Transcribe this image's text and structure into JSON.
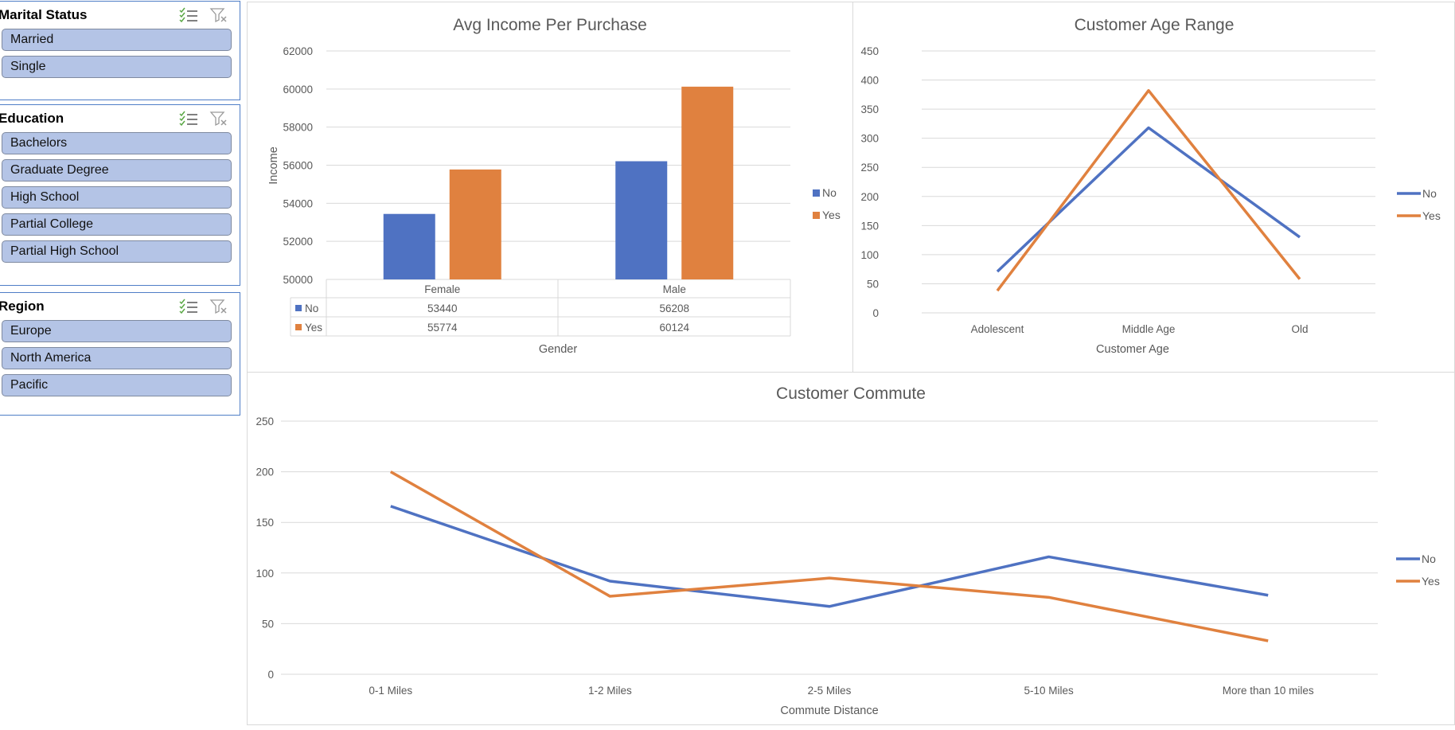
{
  "slicers": {
    "marital": {
      "title": "Marital Status",
      "items": [
        "Married",
        "Single"
      ]
    },
    "education": {
      "title": "Education",
      "items": [
        "Bachelors",
        "Graduate Degree",
        "High School",
        "Partial College",
        "Partial High School"
      ]
    },
    "region": {
      "title": "Region",
      "items": [
        "Europe",
        "North America",
        "Pacific"
      ]
    }
  },
  "colors": {
    "no": "#4f72c2",
    "yes": "#e0813f",
    "slicer_item": "#b4c4e6",
    "slicer_border": "#4f7ec7"
  },
  "chart_data": [
    {
      "id": "income",
      "type": "bar",
      "title": "Avg Income Per Purchase",
      "xlabel": "Gender",
      "ylabel": "Income",
      "categories": [
        "Female",
        "Male"
      ],
      "series": [
        {
          "name": "No",
          "values": [
            53440,
            56208
          ]
        },
        {
          "name": "Yes",
          "values": [
            55774,
            60124
          ]
        }
      ],
      "ylim": [
        50000,
        62000
      ],
      "yticks": [
        "62000",
        "60000",
        "58000",
        "56000",
        "54000",
        "52000",
        "50000"
      ],
      "data_table": true,
      "legend": "right",
      "grid": true
    },
    {
      "id": "age",
      "type": "line",
      "title": "Customer Age Range",
      "xlabel": "Customer Age",
      "ylabel": "",
      "categories": [
        "Adolescent",
        "Middle Age",
        "Old"
      ],
      "series": [
        {
          "name": "No",
          "values": [
            71,
            318,
            130
          ]
        },
        {
          "name": "Yes",
          "values": [
            38,
            382,
            58
          ]
        }
      ],
      "ylim": [
        0,
        450
      ],
      "yticks": [
        "450",
        "400",
        "350",
        "300",
        "250",
        "200",
        "150",
        "100",
        "50",
        "0"
      ],
      "legend": "right",
      "grid": true
    },
    {
      "id": "commute",
      "type": "line",
      "title": "Customer Commute",
      "xlabel": "Commute Distance",
      "ylabel": "",
      "categories": [
        "0-1 Miles",
        "1-2 Miles",
        "2-5 Miles",
        "5-10 Miles",
        "More than 10 miles"
      ],
      "series": [
        {
          "name": "No",
          "values": [
            166,
            92,
            67,
            116,
            78
          ]
        },
        {
          "name": "Yes",
          "values": [
            200,
            77,
            95,
            76,
            33
          ]
        }
      ],
      "ylim": [
        0,
        250
      ],
      "yticks": [
        "250",
        "200",
        "150",
        "100",
        "50",
        "0"
      ],
      "legend": "right",
      "grid": true
    }
  ]
}
